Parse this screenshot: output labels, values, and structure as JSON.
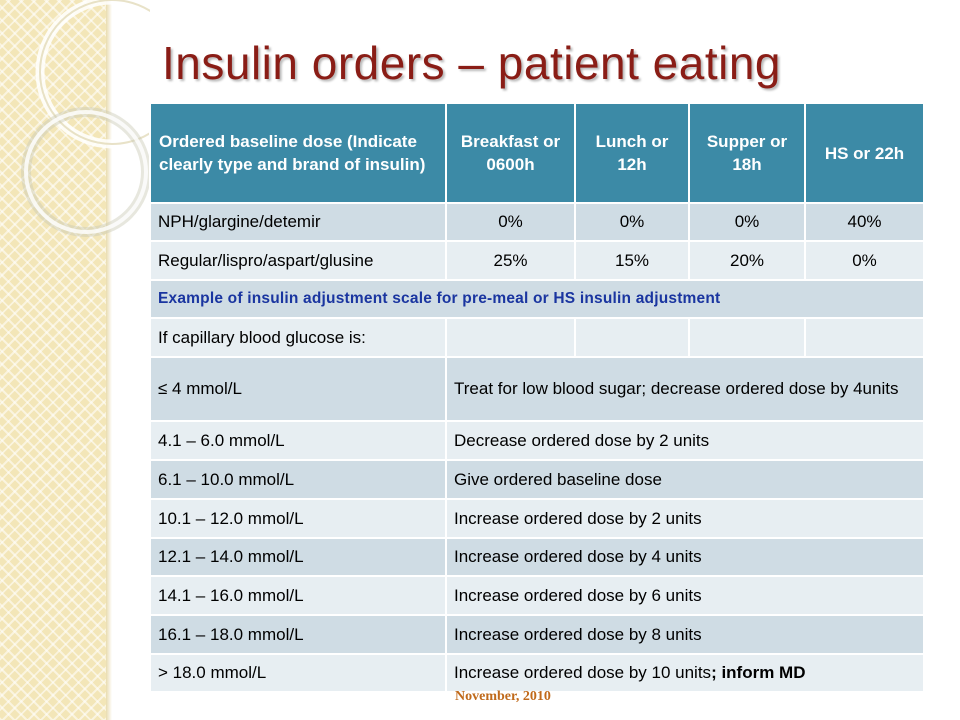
{
  "slide": {
    "title": "Insulin orders – patient eating",
    "footer": "November, 2010"
  },
  "colors": {
    "title": "#8a1d16",
    "header_bg": "#3c8aa6",
    "row_dark": "#cfdce4",
    "row_light": "#e7eef2",
    "example_text": "#1a35a0",
    "footer": "#c06a1b"
  },
  "table": {
    "headers": [
      "Ordered baseline dose (Indicate clearly type and brand of insulin)",
      "Breakfast or 0600h",
      "Lunch or 12h",
      "Supper or 18h",
      "HS or 22h"
    ],
    "dose_rows": [
      {
        "insulin": "NPH/glargine/detemir",
        "values": [
          "0%",
          "0%",
          "0%",
          "40%"
        ]
      },
      {
        "insulin": "Regular/lispro/aspart/glusine",
        "values": [
          "25%",
          "15%",
          "20%",
          "0%"
        ]
      }
    ],
    "example_label": "Example of insulin adjustment scale for pre-meal or HS insulin adjustment",
    "glucose_header": "If capillary blood glucose is:",
    "scale_rows": [
      {
        "range": "≤ 4 mmol/L",
        "action": "Treat for low blood sugar; decrease ordered dose by 4units"
      },
      {
        "range": "4.1 – 6.0 mmol/L",
        "action": "Decrease ordered dose by 2 units"
      },
      {
        "range": "6.1 – 10.0 mmol/L",
        "action": "Give ordered baseline dose"
      },
      {
        "range": "10.1 – 12.0 mmol/L",
        "action": "Increase ordered dose by 2 units"
      },
      {
        "range": "12.1 – 14.0 mmol/L",
        "action": "Increase ordered dose by 4 units"
      },
      {
        "range": "14.1 – 16.0 mmol/L",
        "action": "Increase ordered dose by 6 units"
      },
      {
        "range": "16.1 – 18.0 mmol/L",
        "action": "Increase ordered dose by 8 units"
      },
      {
        "range": "> 18.0 mmol/L",
        "action": "Increase ordered dose by 10 units",
        "action_suffix": "; inform MD"
      }
    ]
  }
}
